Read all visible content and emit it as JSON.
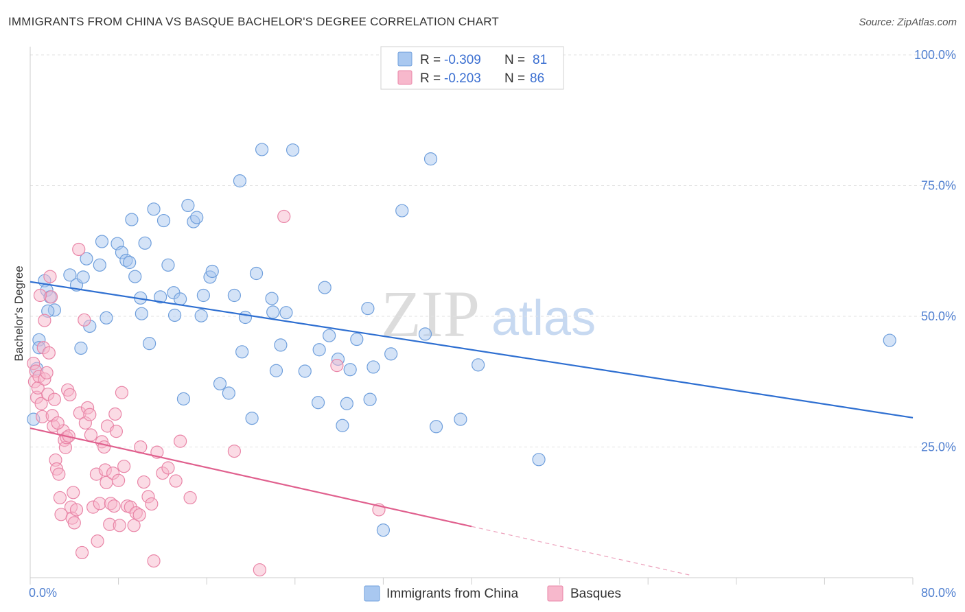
{
  "header": {
    "title": "IMMIGRANTS FROM CHINA VS BASQUE BACHELOR'S DEGREE CORRELATION CHART",
    "source": "Source: ZipAtlas.com"
  },
  "watermark": {
    "zip": "ZIP",
    "atlas": "atlas"
  },
  "legend_top": [
    {
      "r_label": "R =",
      "r_value": "-0.309",
      "n_label": "N =",
      "n_value": "81"
    },
    {
      "r_label": "R =",
      "r_value": "-0.203",
      "n_label": "N =",
      "n_value": "86"
    }
  ],
  "legend_bottom": [
    {
      "label": "Immigrants from China"
    },
    {
      "label": "Basques"
    }
  ],
  "colors": {
    "china_fill": "#a9c8f0",
    "china_stroke": "#6f9fdc",
    "china_line": "#2e6fd1",
    "basque_fill": "#f7b8cc",
    "basque_stroke": "#e985a7",
    "basque_line": "#e0608e"
  },
  "chart_data": {
    "type": "scatter",
    "title": "IMMIGRANTS FROM CHINA VS BASQUE BACHELOR'S DEGREE CORRELATION CHART",
    "xlabel": "",
    "ylabel": "Bachelor's Degree",
    "xlim": [
      0,
      80
    ],
    "ylim": [
      0,
      100
    ],
    "x_tick_labels": [
      "0.0%",
      "80.0%"
    ],
    "y_ticks": [
      25,
      50,
      75,
      100
    ],
    "y_tick_labels": [
      "25.0%",
      "50.0%",
      "75.0%",
      "100.0%"
    ],
    "grid": true,
    "legend_position": "top-center",
    "series": [
      {
        "name": "Immigrants from China",
        "r": -0.309,
        "n": 81,
        "trend": {
          "x": [
            0,
            80
          ],
          "y": [
            56.6,
            30.6
          ]
        },
        "points": [
          [
            0.6,
            40
          ],
          [
            0.8,
            45.5
          ],
          [
            1.3,
            56.8
          ],
          [
            1.5,
            55
          ],
          [
            1.8,
            53.7
          ],
          [
            2.2,
            51.2
          ],
          [
            3.6,
            57.9
          ],
          [
            4.2,
            56
          ],
          [
            4.8,
            57.5
          ],
          [
            4.6,
            43.9
          ],
          [
            5.4,
            48.1
          ],
          [
            5.1,
            61
          ],
          [
            6.3,
            59.8
          ],
          [
            6.5,
            64.3
          ],
          [
            6.9,
            49.7
          ],
          [
            7.9,
            63.9
          ],
          [
            8.3,
            62.2
          ],
          [
            8.7,
            60.7
          ],
          [
            9.0,
            60.3
          ],
          [
            9.2,
            68.5
          ],
          [
            9.5,
            57.6
          ],
          [
            10.0,
            53.5
          ],
          [
            10.1,
            50.5
          ],
          [
            10.4,
            64
          ],
          [
            10.8,
            44.8
          ],
          [
            11.2,
            70.5
          ],
          [
            11.8,
            53.7
          ],
          [
            12.1,
            68.3
          ],
          [
            12.5,
            59.8
          ],
          [
            13.0,
            54.5
          ],
          [
            13.1,
            50.2
          ],
          [
            13.6,
            53.3
          ],
          [
            13.9,
            34.2
          ],
          [
            14.3,
            71.2
          ],
          [
            14.8,
            68.1
          ],
          [
            15.1,
            68.9
          ],
          [
            15.5,
            50.1
          ],
          [
            15.7,
            54
          ],
          [
            16.3,
            57.5
          ],
          [
            16.5,
            58.6
          ],
          [
            17.2,
            37.1
          ],
          [
            18.0,
            35.3
          ],
          [
            18.5,
            54
          ],
          [
            19.0,
            75.9
          ],
          [
            19.2,
            43.2
          ],
          [
            19.5,
            49.8
          ],
          [
            20.1,
            30.5
          ],
          [
            20.5,
            58.2
          ],
          [
            21.0,
            81.9
          ],
          [
            21.9,
            53.4
          ],
          [
            22.0,
            50.8
          ],
          [
            22.3,
            39.6
          ],
          [
            22.7,
            44.5
          ],
          [
            23.2,
            50.7
          ],
          [
            23.8,
            81.8
          ],
          [
            24.9,
            39.5
          ],
          [
            26.1,
            33.5
          ],
          [
            26.2,
            43.6
          ],
          [
            26.7,
            55.5
          ],
          [
            27.1,
            46.3
          ],
          [
            27.9,
            41.8
          ],
          [
            28.3,
            29.1
          ],
          [
            28.7,
            33.3
          ],
          [
            29.0,
            39.8
          ],
          [
            29.6,
            45.6
          ],
          [
            30.6,
            51.5
          ],
          [
            30.8,
            34.1
          ],
          [
            31.1,
            40.3
          ],
          [
            32.0,
            9.1
          ],
          [
            32.7,
            42.8
          ],
          [
            33.7,
            70.2
          ],
          [
            35.8,
            46.6
          ],
          [
            36.3,
            80.1
          ],
          [
            36.8,
            28.9
          ],
          [
            39.0,
            30.3
          ],
          [
            40.6,
            40.7
          ],
          [
            46.1,
            22.6
          ],
          [
            77.9,
            45.4
          ],
          [
            0.3,
            30.3
          ],
          [
            0.8,
            44
          ],
          [
            1.6,
            51
          ]
        ]
      },
      {
        "name": "Basques",
        "r": -0.203,
        "n": 86,
        "trend": {
          "x": [
            0,
            40
          ],
          "y": [
            28.6,
            9.8
          ]
        },
        "trend_dashed": {
          "x": [
            40,
            60
          ],
          "y": [
            9.8,
            0.4
          ]
        },
        "points": [
          [
            0.3,
            41
          ],
          [
            0.4,
            37.5
          ],
          [
            0.5,
            39.5
          ],
          [
            0.6,
            34.5
          ],
          [
            0.7,
            36.3
          ],
          [
            0.8,
            38.5
          ],
          [
            1.0,
            33.3
          ],
          [
            1.1,
            30.8
          ],
          [
            1.2,
            44
          ],
          [
            1.3,
            38
          ],
          [
            1.5,
            39.2
          ],
          [
            1.6,
            35.1
          ],
          [
            1.7,
            43
          ],
          [
            1.8,
            57.6
          ],
          [
            1.9,
            53.7
          ],
          [
            2.0,
            31
          ],
          [
            2.1,
            29
          ],
          [
            2.2,
            34.1
          ],
          [
            2.3,
            22.5
          ],
          [
            2.4,
            20.8
          ],
          [
            2.6,
            19.8
          ],
          [
            2.7,
            15.3
          ],
          [
            2.8,
            12.1
          ],
          [
            3.0,
            28.1
          ],
          [
            3.1,
            26.3
          ],
          [
            3.2,
            24.9
          ],
          [
            3.3,
            26.8
          ],
          [
            3.4,
            35.9
          ],
          [
            3.6,
            35
          ],
          [
            3.7,
            13.5
          ],
          [
            3.8,
            11.4
          ],
          [
            3.9,
            16.3
          ],
          [
            4.0,
            10.5
          ],
          [
            4.2,
            13
          ],
          [
            4.4,
            62.8
          ],
          [
            4.5,
            31.5
          ],
          [
            4.7,
            4.8
          ],
          [
            4.9,
            49.3
          ],
          [
            5.0,
            29.6
          ],
          [
            5.2,
            32.5
          ],
          [
            5.4,
            31.2
          ],
          [
            5.5,
            27.3
          ],
          [
            5.7,
            13.5
          ],
          [
            6.0,
            19.8
          ],
          [
            6.1,
            7
          ],
          [
            6.3,
            14.2
          ],
          [
            6.5,
            26
          ],
          [
            6.7,
            25
          ],
          [
            6.8,
            20.6
          ],
          [
            6.9,
            18.2
          ],
          [
            7.0,
            29
          ],
          [
            7.2,
            10.2
          ],
          [
            7.3,
            14.2
          ],
          [
            7.5,
            20
          ],
          [
            7.6,
            13.7
          ],
          [
            7.7,
            31.3
          ],
          [
            7.8,
            28
          ],
          [
            8.0,
            18.6
          ],
          [
            8.1,
            10
          ],
          [
            8.3,
            35.4
          ],
          [
            8.5,
            21.3
          ],
          [
            8.8,
            13.7
          ],
          [
            9.1,
            13.5
          ],
          [
            9.4,
            10
          ],
          [
            9.6,
            12.4
          ],
          [
            9.9,
            12
          ],
          [
            10.0,
            25
          ],
          [
            10.3,
            18.3
          ],
          [
            10.7,
            15.5
          ],
          [
            11.0,
            14.1
          ],
          [
            11.2,
            3.2
          ],
          [
            11.5,
            24
          ],
          [
            12.0,
            20
          ],
          [
            12.5,
            21
          ],
          [
            13.2,
            18.5
          ],
          [
            13.6,
            26.1
          ],
          [
            14.5,
            15.3
          ],
          [
            18.5,
            24.2
          ],
          [
            20.8,
            1.5
          ],
          [
            23.0,
            69.1
          ],
          [
            27.8,
            40.6
          ],
          [
            31.6,
            13
          ],
          [
            1.3,
            49.2
          ],
          [
            0.9,
            54
          ],
          [
            2.5,
            29.6
          ],
          [
            3.5,
            27.1
          ]
        ]
      }
    ]
  }
}
